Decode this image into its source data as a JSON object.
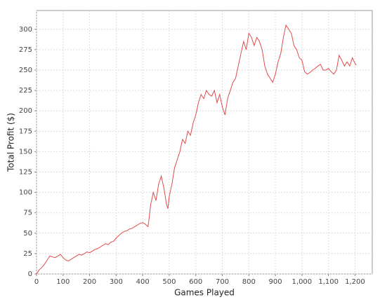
{
  "chart_data": {
    "type": "line",
    "x_label": "Games Played",
    "y_label": "Total Profit ($)",
    "x": [
      0,
      10,
      20,
      30,
      40,
      50,
      60,
      70,
      80,
      90,
      100,
      110,
      120,
      130,
      140,
      150,
      160,
      170,
      180,
      190,
      200,
      210,
      220,
      230,
      240,
      250,
      260,
      270,
      280,
      290,
      300,
      310,
      320,
      330,
      340,
      350,
      360,
      370,
      380,
      390,
      400,
      410,
      420,
      425,
      430,
      440,
      450,
      460,
      470,
      480,
      490,
      495,
      500,
      510,
      520,
      530,
      540,
      550,
      560,
      570,
      580,
      590,
      600,
      610,
      620,
      630,
      640,
      650,
      660,
      670,
      680,
      690,
      700,
      710,
      720,
      730,
      740,
      750,
      760,
      770,
      780,
      790,
      800,
      810,
      820,
      830,
      840,
      850,
      860,
      870,
      880,
      890,
      900,
      910,
      920,
      930,
      940,
      950,
      960,
      970,
      980,
      990,
      1000,
      1010,
      1020,
      1030,
      1040,
      1050,
      1060,
      1070,
      1080,
      1090,
      1100,
      1110,
      1120,
      1130,
      1140,
      1150,
      1160,
      1170,
      1180,
      1190,
      1200,
      1205
    ],
    "series": [
      {
        "name": "Total Profit",
        "color": "#e24a4a",
        "values": [
          0,
          5,
          8,
          12,
          17,
          22,
          21,
          20,
          22,
          24,
          20,
          17,
          16,
          18,
          20,
          22,
          24,
          23,
          25,
          27,
          26,
          28,
          30,
          31,
          33,
          35,
          37,
          36,
          39,
          40,
          44,
          47,
          50,
          52,
          53,
          55,
          56,
          58,
          60,
          62,
          63,
          61,
          58,
          70,
          85,
          100,
          90,
          110,
          120,
          105,
          85,
          80,
          95,
          110,
          130,
          140,
          150,
          165,
          160,
          175,
          170,
          185,
          195,
          210,
          220,
          215,
          225,
          220,
          218,
          225,
          210,
          220,
          205,
          195,
          215,
          225,
          235,
          240,
          255,
          270,
          285,
          275,
          295,
          290,
          280,
          290,
          285,
          275,
          255,
          245,
          240,
          235,
          245,
          260,
          270,
          290,
          305,
          300,
          295,
          280,
          275,
          265,
          262,
          248,
          245,
          247,
          250,
          252,
          255,
          257,
          250,
          250,
          252,
          248,
          245,
          250,
          268,
          262,
          255,
          260,
          255,
          265,
          258,
          256
        ]
      }
    ],
    "xlim": [
      0,
      1265
    ],
    "ylim": [
      0,
      323
    ],
    "xticks": [
      0,
      100,
      200,
      300,
      400,
      500,
      600,
      700,
      800,
      900,
      {
        "value": 1000,
        "label": "1,000"
      },
      {
        "value": 1100,
        "label": "1,100"
      },
      {
        "value": 1200,
        "label": "1,200"
      }
    ],
    "yticks": [
      0,
      25,
      50,
      75,
      100,
      125,
      150,
      175,
      200,
      225,
      250,
      275,
      300
    ],
    "grid": true
  }
}
